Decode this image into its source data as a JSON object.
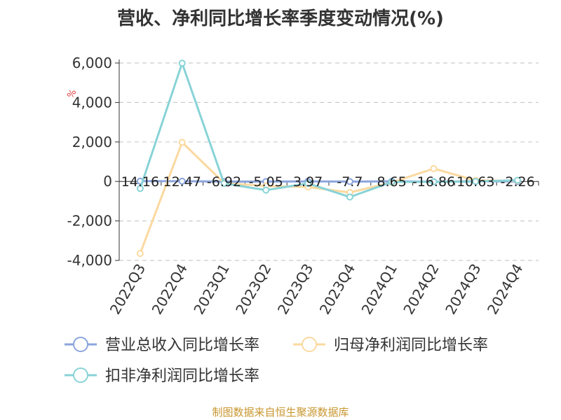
{
  "chart_data": {
    "type": "line",
    "title": "营收、净利同比增长率季度变动情况(%)",
    "ylabel": "%",
    "categories": [
      "2022Q3",
      "2022Q4",
      "2023Q1",
      "2023Q2",
      "2023Q3",
      "2023Q4",
      "2024Q1",
      "2024Q2",
      "2024Q3",
      "2024Q4"
    ],
    "y_ticks": [
      "6,000",
      "4,000",
      "2,000",
      "0",
      "-2,000",
      "-4,000"
    ],
    "ylim": [
      -4000,
      6000
    ],
    "grid": true,
    "legend_position": "bottom-left",
    "series": [
      {
        "name": "营业总收入同比增长率",
        "color": "#8ba5dd",
        "values": [
          14.16,
          12.47,
          -6.92,
          -5.05,
          3.97,
          -7.7,
          8.65,
          -16.86,
          10.63,
          -2.26
        ],
        "labels": [
          "14.16",
          "12.47",
          "-6.92",
          "-5.05",
          "3.97",
          "-7.7",
          "8.65",
          "-16.86",
          "10.63",
          "-2.26"
        ]
      },
      {
        "name": "归母净利润同比增长率",
        "color": "#fbd9a0",
        "values": [
          -3650,
          1980,
          -80,
          -230,
          -280,
          -560,
          -50,
          650,
          50,
          40
        ]
      },
      {
        "name": "扣非净利润同比增长率",
        "color": "#88d3d7",
        "values": [
          -360,
          5990,
          -100,
          -440,
          -100,
          -790,
          -30,
          -20,
          0,
          60
        ]
      }
    ]
  },
  "source_text": "制图数据来自恒生聚源数据库"
}
